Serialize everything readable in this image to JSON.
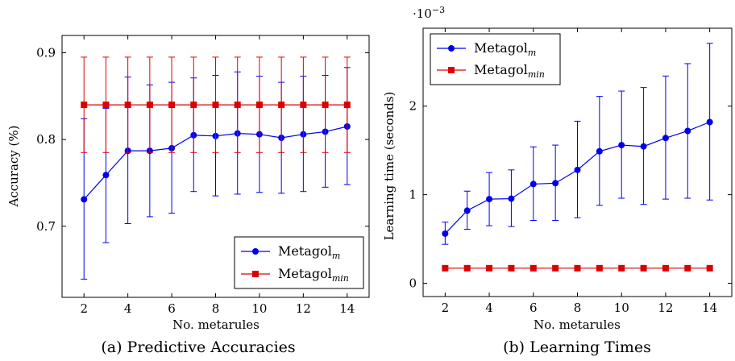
{
  "colors": {
    "blue": "#0000ee",
    "red": "#dd0000",
    "axis": "#000000"
  },
  "chart_data": [
    {
      "type": "line",
      "caption": "(a) Predictive Accuracies",
      "xlabel": "No. metarules",
      "ylabel": "Accuracy (%)",
      "xlim": [
        1,
        15
      ],
      "ylim": [
        0.618,
        0.92
      ],
      "xticks": [
        "2",
        "4",
        "6",
        "8",
        "10",
        "12",
        "14"
      ],
      "yticks": [
        "0.7",
        "0.8",
        "0.9"
      ],
      "legend_position": "bottom-right",
      "x": [
        2,
        3,
        4,
        5,
        6,
        7,
        8,
        9,
        10,
        11,
        12,
        13,
        14
      ],
      "series": [
        {
          "name": "Metagol",
          "subscript": "m",
          "color": "#0000ee",
          "marker": "circle",
          "values": [
            0.731,
            0.759,
            0.787,
            0.787,
            0.79,
            0.805,
            0.804,
            0.807,
            0.806,
            0.802,
            0.806,
            0.809,
            0.815
          ],
          "error_low": [
            0.639,
            0.681,
            0.703,
            0.711,
            0.715,
            0.74,
            0.735,
            0.737,
            0.739,
            0.738,
            0.74,
            0.745,
            0.748
          ],
          "error_high": [
            0.824,
            0.836,
            0.872,
            0.863,
            0.866,
            0.871,
            0.874,
            0.878,
            0.873,
            0.866,
            0.873,
            0.874,
            0.883
          ]
        },
        {
          "name": "Metagol",
          "subscript": "min",
          "color": "#dd0000",
          "marker": "square",
          "values": [
            0.84,
            0.84,
            0.84,
            0.84,
            0.84,
            0.84,
            0.84,
            0.84,
            0.84,
            0.84,
            0.84,
            0.84,
            0.84
          ],
          "error_low": [
            0.785,
            0.785,
            0.785,
            0.785,
            0.785,
            0.785,
            0.785,
            0.785,
            0.785,
            0.785,
            0.785,
            0.785,
            0.785
          ],
          "error_high": [
            0.895,
            0.895,
            0.895,
            0.895,
            0.895,
            0.895,
            0.895,
            0.895,
            0.895,
            0.895,
            0.895,
            0.895,
            0.895
          ]
        }
      ]
    },
    {
      "type": "line",
      "caption": "(b) Learning Times",
      "xlabel": "No. metarules",
      "ylabel": "Learning time (seconds)",
      "scale_label": "·10",
      "scale_exponent": "−3",
      "xlim": [
        1,
        15
      ],
      "ylim": [
        -0.15,
        2.88
      ],
      "xticks": [
        "2",
        "4",
        "6",
        "8",
        "10",
        "12",
        "14"
      ],
      "yticks": [
        "0",
        "1",
        "2"
      ],
      "legend_position": "top-left",
      "x": [
        2,
        3,
        4,
        5,
        6,
        7,
        8,
        9,
        10,
        11,
        12,
        13,
        14
      ],
      "series": [
        {
          "name": "Metagol",
          "subscript": "m",
          "color": "#0000ee",
          "marker": "circle",
          "values": [
            0.56,
            0.82,
            0.95,
            0.955,
            1.12,
            1.13,
            1.28,
            1.49,
            1.56,
            1.545,
            1.64,
            1.72,
            1.82
          ],
          "error_low": [
            0.44,
            0.61,
            0.65,
            0.64,
            0.71,
            0.71,
            0.74,
            0.88,
            0.96,
            0.89,
            0.95,
            0.96,
            0.94
          ],
          "error_high": [
            0.69,
            1.04,
            1.25,
            1.28,
            1.54,
            1.56,
            1.83,
            2.11,
            2.17,
            2.21,
            2.34,
            2.48,
            2.71
          ]
        },
        {
          "name": "Metagol",
          "subscript": "min",
          "color": "#dd0000",
          "marker": "square",
          "values": [
            0.17,
            0.17,
            0.17,
            0.17,
            0.17,
            0.17,
            0.17,
            0.17,
            0.17,
            0.17,
            0.17,
            0.17,
            0.17
          ]
        }
      ]
    }
  ]
}
